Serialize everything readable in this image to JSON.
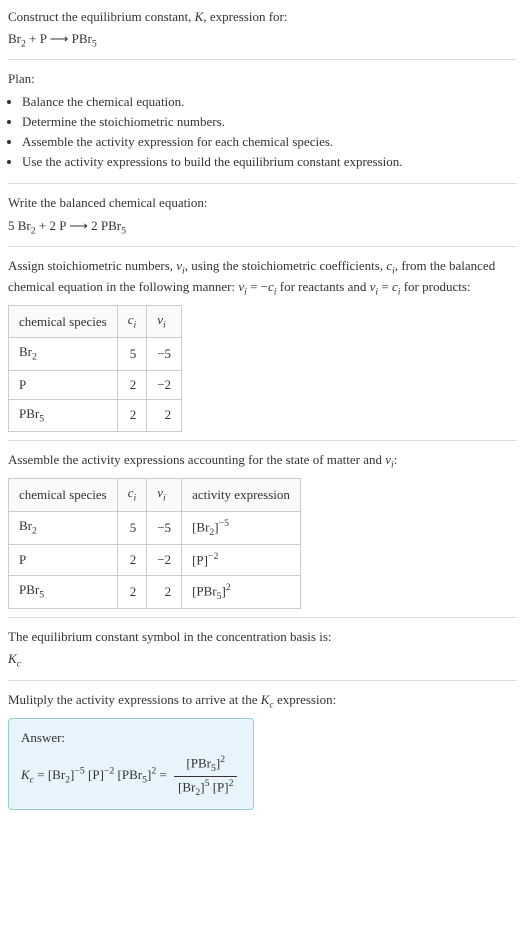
{
  "header": {
    "line1": "Construct the equilibrium constant, <span class=\"ital\">K</span>, expression for:",
    "eq_unbalanced": "Br<span class=\"sub\">2</span> + P ⟶ PBr<span class=\"sub\">5</span>"
  },
  "plan": {
    "title": "Plan:",
    "items": [
      "Balance the chemical equation.",
      "Determine the stoichiometric numbers.",
      "Assemble the activity expression for each chemical species.",
      "Use the activity expressions to build the equilibrium constant expression."
    ]
  },
  "balanced": {
    "title": "Write the balanced chemical equation:",
    "eq": "5 Br<span class=\"sub\">2</span> + 2 P ⟶ 2 PBr<span class=\"sub\">5</span>"
  },
  "stoich": {
    "intro": "Assign stoichiometric numbers, <span class=\"ital\">ν<span class=\"sub\">i</span></span>, using the stoichiometric coefficients, <span class=\"ital\">c<span class=\"sub\">i</span></span>, from the balanced chemical equation in the following manner: <span class=\"ital\">ν<span class=\"sub\">i</span></span> = −<span class=\"ital\">c<span class=\"sub\">i</span></span> for reactants and <span class=\"ital\">ν<span class=\"sub\">i</span></span> = <span class=\"ital\">c<span class=\"sub\">i</span></span> for products:",
    "headers": [
      "chemical species",
      "<span class=\"ital\">c<span class=\"sub\">i</span></span>",
      "<span class=\"ital\">ν<span class=\"sub\">i</span></span>"
    ],
    "rows": [
      [
        "Br<span class=\"sub\">2</span>",
        "5",
        "−5"
      ],
      [
        "P",
        "2",
        "−2"
      ],
      [
        "PBr<span class=\"sub\">5</span>",
        "2",
        "2"
      ]
    ]
  },
  "activity": {
    "intro": "Assemble the activity expressions accounting for the state of matter and <span class=\"ital\">ν<span class=\"sub\">i</span></span>:",
    "headers": [
      "chemical species",
      "<span class=\"ital\">c<span class=\"sub\">i</span></span>",
      "<span class=\"ital\">ν<span class=\"sub\">i</span></span>",
      "activity expression"
    ],
    "rows": [
      [
        "Br<span class=\"sub\">2</span>",
        "5",
        "−5",
        "[Br<span class=\"sub\">2</span>]<span class=\"sup\">−5</span>"
      ],
      [
        "P",
        "2",
        "−2",
        "[P]<span class=\"sup\">−2</span>"
      ],
      [
        "PBr<span class=\"sub\">5</span>",
        "2",
        "2",
        "[PBr<span class=\"sub\">5</span>]<span class=\"sup\">2</span>"
      ]
    ]
  },
  "ksymbol": {
    "line": "The equilibrium constant symbol in the concentration basis is:",
    "sym": "<span class=\"ital\">K<span class=\"sub\">c</span></span>"
  },
  "multiply": {
    "line": "Mulitply the activity expressions to arrive at the <span class=\"ital\">K<span class=\"sub\">c</span></span> expression:"
  },
  "answer": {
    "label": "Answer:",
    "lhs": "<span class=\"ital\">K<span class=\"sub\">c</span></span> = [Br<span class=\"sub\">2</span>]<span class=\"sup\">−5</span> [P]<span class=\"sup\">−2</span> [PBr<span class=\"sub\">5</span>]<span class=\"sup\">2</span> = ",
    "num": "[PBr<span class=\"sub\">5</span>]<span class=\"sup\">2</span>",
    "den": "[Br<span class=\"sub\">2</span>]<span class=\"sup\">5</span> [P]<span class=\"sup\">2</span>"
  }
}
